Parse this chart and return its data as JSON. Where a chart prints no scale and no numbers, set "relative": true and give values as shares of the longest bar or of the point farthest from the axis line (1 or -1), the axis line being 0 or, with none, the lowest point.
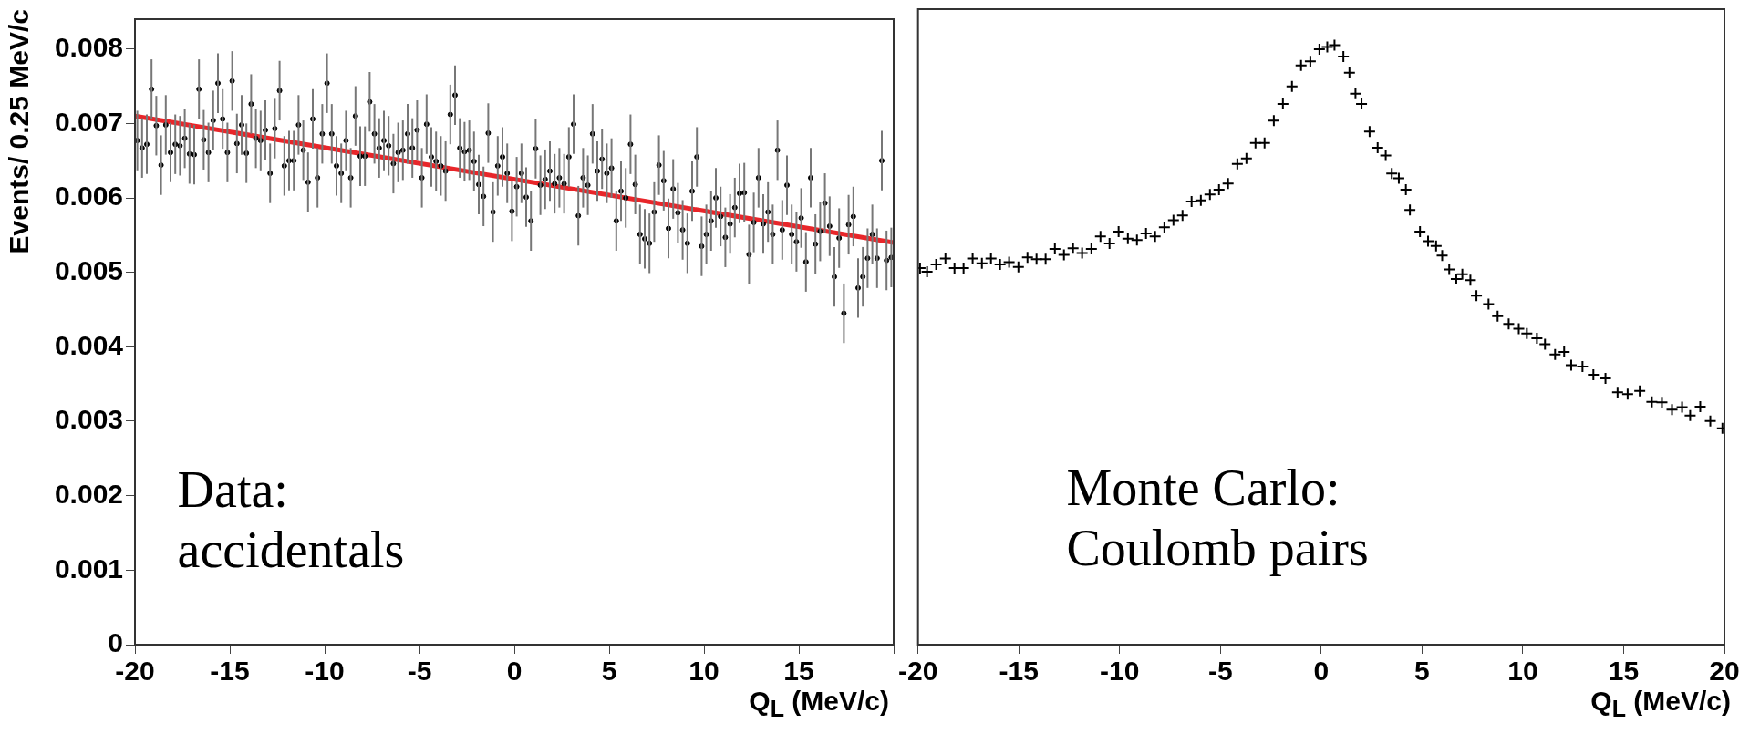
{
  "chart_data": [
    {
      "type": "scatter",
      "xlabel": "Q$_{L}$ (MeV/c)",
      "ylabel": "Events/ 0.25 MeV/c",
      "xlim": [
        -20,
        20
      ],
      "xticks": [
        -20,
        -15,
        -10,
        -5,
        0,
        5,
        10,
        15,
        {
          "value": 20,
          "label": null
        }
      ],
      "ylim": [
        0,
        0.0084
      ],
      "yticks": [
        0,
        0.001,
        0.002,
        0.003,
        0.004,
        0.005,
        0.006,
        0.007,
        0.008
      ],
      "annotations": [
        "Data:\naccidentals"
      ],
      "legend": false,
      "series": [
        {
          "marker": "circle",
          "color": "#000000",
          "x": [
            -19.875,
            -19.625,
            -19.375,
            -19.125,
            -18.875,
            -18.625,
            -18.375,
            -18.125,
            -17.875,
            -17.625,
            -17.375,
            -17.125,
            -16.875,
            -16.625,
            -16.375,
            -16.125,
            -15.875,
            -15.625,
            -15.375,
            -15.125,
            -14.875,
            -14.625,
            -14.375,
            -14.125,
            -13.875,
            -13.625,
            -13.375,
            -13.125,
            -12.875,
            -12.625,
            -12.375,
            -12.125,
            -11.875,
            -11.625,
            -11.375,
            -11.125,
            -10.875,
            -10.625,
            -10.375,
            -10.125,
            -9.875,
            -9.625,
            -9.375,
            -9.125,
            -8.875,
            -8.625,
            -8.375,
            -8.125,
            -7.875,
            -7.625,
            -7.375,
            -7.125,
            -6.875,
            -6.625,
            -6.375,
            -6.125,
            -5.875,
            -5.625,
            -5.375,
            -5.125,
            -4.875,
            -4.625,
            -4.375,
            -4.125,
            -3.875,
            -3.625,
            -3.375,
            -3.125,
            -2.875,
            -2.625,
            -2.375,
            -2.125,
            -1.875,
            -1.625,
            -1.375,
            -1.125,
            -0.875,
            -0.625,
            -0.375,
            -0.125,
            0.125,
            0.375,
            0.625,
            0.875,
            1.125,
            1.375,
            1.625,
            1.875,
            2.125,
            2.375,
            2.625,
            2.875,
            3.125,
            3.375,
            3.625,
            3.875,
            4.125,
            4.375,
            4.625,
            4.875,
            5.125,
            5.375,
            5.625,
            5.875,
            6.125,
            6.375,
            6.625,
            6.875,
            7.125,
            7.375,
            7.625,
            7.875,
            8.125,
            8.375,
            8.625,
            8.875,
            9.125,
            9.375,
            9.625,
            9.875,
            10.125,
            10.375,
            10.625,
            10.875,
            11.125,
            11.375,
            11.625,
            11.875,
            12.125,
            12.375,
            12.625,
            12.875,
            13.125,
            13.375,
            13.625,
            13.875,
            14.125,
            14.375,
            14.625,
            14.875,
            15.125,
            15.375,
            15.625,
            15.875,
            16.125,
            16.375,
            16.625,
            16.875,
            17.125,
            17.375,
            17.625,
            17.875,
            18.125,
            18.375,
            18.625,
            18.875,
            19.125,
            19.375,
            19.625,
            19.875
          ],
          "values": [
            0.00677,
            0.00667,
            0.00672,
            0.00746,
            0.00697,
            0.00644,
            0.00698,
            0.00661,
            0.00672,
            0.0067,
            0.0068,
            0.00659,
            0.00658,
            0.00746,
            0.00678,
            0.00661,
            0.00704,
            0.00754,
            0.00706,
            0.00661,
            0.00757,
            0.00673,
            0.00698,
            0.0066,
            0.00726,
            0.0068,
            0.00677,
            0.00691,
            0.00633,
            0.00693,
            0.00744,
            0.00643,
            0.0065,
            0.0065,
            0.00698,
            0.00664,
            0.00621,
            0.00706,
            0.00627,
            0.00686,
            0.00754,
            0.00686,
            0.00643,
            0.00633,
            0.00677,
            0.00627,
            0.0071,
            0.00656,
            0.00656,
            0.00729,
            0.00686,
            0.00667,
            0.00677,
            0.0067,
            0.00646,
            0.00661,
            0.00664,
            0.00686,
            0.00667,
            0.00691,
            0.00627,
            0.00699,
            0.00655,
            0.00649,
            0.00643,
            0.00636,
            0.00712,
            0.00738,
            0.00667,
            0.00662,
            0.00664,
            0.00649,
            0.00618,
            0.00602,
            0.00687,
            0.00581,
            0.00643,
            0.00655,
            0.00633,
            0.00582,
            0.00615,
            0.00633,
            0.00601,
            0.00569,
            0.00666,
            0.00617,
            0.00625,
            0.00636,
            0.00619,
            0.00627,
            0.00619,
            0.00655,
            0.00699,
            0.00576,
            0.00627,
            0.00617,
            0.00686,
            0.00636,
            0.00652,
            0.00633,
            0.0064,
            0.00569,
            0.00609,
            0.006,
            0.00672,
            0.00618,
            0.00551,
            0.00545,
            0.00539,
            0.00581,
            0.00644,
            0.00623,
            0.00559,
            0.00612,
            0.0058,
            0.00557,
            0.00539,
            0.00609,
            0.00655,
            0.00535,
            0.00551,
            0.00569,
            0.006,
            0.00575,
            0.00547,
            0.00565,
            0.00587,
            0.00606,
            0.00607,
            0.00524,
            0.00567,
            0.00627,
            0.00565,
            0.00581,
            0.00551,
            0.00664,
            0.00557,
            0.00617,
            0.00551,
            0.00541,
            0.00573,
            0.00514,
            0.00627,
            0.00538,
            0.00555,
            0.00593,
            0.00562,
            0.00494,
            0.00546,
            0.00445,
            0.00564,
            0.00575,
            0.00479,
            0.00494,
            0.00519,
            0.00551,
            0.00519,
            0.0065,
            0.00516,
            0.0052
          ],
          "errors": [
            0.0004,
            0.0004,
            0.0004,
            0.0004,
            0.0004,
            0.0004,
            0.0004,
            0.0004,
            0.0004,
            0.0004,
            0.0004,
            0.0004,
            0.0004,
            0.0004,
            0.0004,
            0.0004,
            0.0004,
            0.0004,
            0.0004,
            0.0004,
            0.0004,
            0.0004,
            0.0004,
            0.0004,
            0.0004,
            0.0004,
            0.0004,
            0.0004,
            0.0004,
            0.0004,
            0.0004,
            0.0004,
            0.0004,
            0.0004,
            0.0004,
            0.0004,
            0.0004,
            0.0004,
            0.0004,
            0.0004,
            0.0004,
            0.0004,
            0.0004,
            0.0004,
            0.0004,
            0.0004,
            0.0004,
            0.0004,
            0.0004,
            0.0004,
            0.0004,
            0.0004,
            0.0004,
            0.0004,
            0.0004,
            0.0004,
            0.0004,
            0.0004,
            0.0004,
            0.0004,
            0.0004,
            0.0004,
            0.0004,
            0.0004,
            0.0004,
            0.0004,
            0.0004,
            0.0004,
            0.0004,
            0.0004,
            0.0004,
            0.0004,
            0.0004,
            0.0004,
            0.0004,
            0.0004,
            0.0004,
            0.0004,
            0.0004,
            0.0004,
            0.0004,
            0.0004,
            0.0004,
            0.0004,
            0.0004,
            0.0004,
            0.0004,
            0.0004,
            0.0004,
            0.0004,
            0.0004,
            0.0004,
            0.0004,
            0.0004,
            0.0004,
            0.0004,
            0.0004,
            0.0004,
            0.0004,
            0.0004,
            0.0004,
            0.0004,
            0.0004,
            0.0004,
            0.0004,
            0.0004,
            0.0004,
            0.0004,
            0.0004,
            0.0004,
            0.0004,
            0.0004,
            0.0004,
            0.0004,
            0.0004,
            0.0004,
            0.0004,
            0.0004,
            0.0004,
            0.0004,
            0.0004,
            0.0004,
            0.0004,
            0.0004,
            0.0004,
            0.0004,
            0.0004,
            0.0004,
            0.0004,
            0.0004,
            0.0004,
            0.0004,
            0.0004,
            0.0004,
            0.0004,
            0.0004,
            0.0004,
            0.0004,
            0.0004,
            0.0004,
            0.0004,
            0.0004,
            0.0004,
            0.0004,
            0.0004,
            0.0004,
            0.0004,
            0.0004,
            0.0004,
            0.0004,
            0.0004,
            0.0004,
            0.0004,
            0.0004,
            0.0004,
            0.0004,
            0.0004,
            0.0004,
            0.0004,
            0.0004
          ]
        },
        {
          "type": "line",
          "marker": "none",
          "color": "#e8262a",
          "x": [
            -20,
            20
          ],
          "values": [
            0.0071,
            0.0054
          ]
        }
      ]
    },
    {
      "type": "scatter",
      "relative": true,
      "xlabel": "Q$_{L}$ (MeV/c)",
      "xlim": [
        -20,
        20
      ],
      "xticks": [
        -20,
        -15,
        -10,
        -5,
        0,
        5,
        10,
        15,
        20
      ],
      "annotations": [
        "Monte Carlo:\nCoulomb pairs"
      ],
      "marker": "cross",
      "legend": false,
      "series": [
        {
          "color": "#000000",
          "x": [
            -19.9,
            -19.55,
            -19.1,
            -18.64,
            -18.19,
            -17.74,
            -17.29,
            -16.83,
            -16.38,
            -15.93,
            -15.48,
            -15.02,
            -14.57,
            -14.12,
            -13.67,
            -13.21,
            -12.76,
            -12.31,
            -11.86,
            -11.4,
            -10.95,
            -10.5,
            -10.05,
            -9.59,
            -9.14,
            -8.69,
            -8.24,
            -7.78,
            -7.33,
            -6.88,
            -6.43,
            -5.97,
            -5.52,
            -5.07,
            -4.62,
            -4.16,
            -3.71,
            -3.26,
            -2.81,
            -2.35,
            -1.9,
            -1.45,
            -1.0,
            -0.54,
            -0.09,
            0.3,
            0.66,
            1.1,
            1.4,
            1.7,
            2.0,
            2.4,
            2.8,
            3.2,
            3.5,
            3.85,
            4.2,
            4.4,
            4.9,
            5.3,
            5.7,
            6.0,
            6.35,
            6.7,
            7.0,
            7.4,
            7.7,
            8.3,
            8.75,
            9.3,
            9.8,
            10.2,
            10.7,
            11.1,
            11.6,
            12.05,
            12.4,
            12.96,
            13.5,
            14.1,
            14.7,
            15.2,
            15.8,
            16.4,
            16.9,
            17.4,
            17.9,
            18.3,
            18.8,
            19.3,
            19.9
          ],
          "values": [
            0.628,
            0.622,
            0.634,
            0.644,
            0.628,
            0.628,
            0.644,
            0.636,
            0.644,
            0.634,
            0.638,
            0.63,
            0.646,
            0.643,
            0.643,
            0.66,
            0.65,
            0.661,
            0.653,
            0.66,
            0.681,
            0.669,
            0.689,
            0.677,
            0.675,
            0.686,
            0.681,
            0.696,
            0.708,
            0.716,
            0.739,
            0.741,
            0.751,
            0.759,
            0.769,
            0.802,
            0.811,
            0.837,
            0.837,
            0.874,
            0.902,
            0.931,
            0.966,
            0.973,
            0.993,
            0.997,
            1.0,
            0.981,
            0.954,
            0.919,
            0.902,
            0.856,
            0.829,
            0.816,
            0.786,
            0.778,
            0.759,
            0.725,
            0.689,
            0.673,
            0.665,
            0.649,
            0.626,
            0.61,
            0.618,
            0.608,
            0.582,
            0.568,
            0.548,
            0.535,
            0.527,
            0.519,
            0.511,
            0.501,
            0.484,
            0.488,
            0.466,
            0.464,
            0.45,
            0.444,
            0.421,
            0.418,
            0.423,
            0.405,
            0.404,
            0.392,
            0.396,
            0.382,
            0.397,
            0.373,
            0.361
          ]
        }
      ]
    }
  ]
}
